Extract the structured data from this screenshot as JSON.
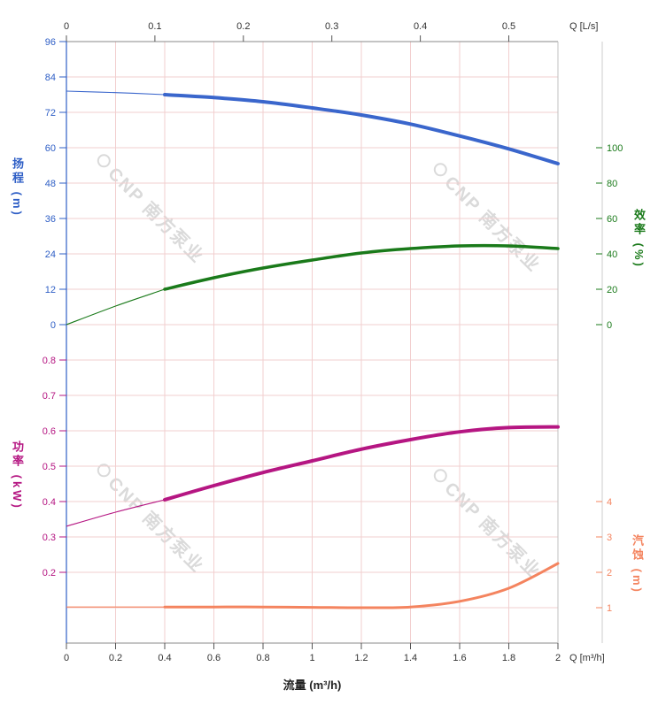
{
  "watermark": {
    "text": "CNP 南方泵业"
  },
  "axes": {
    "top_x": {
      "label": "Q [L/s]",
      "ticks": [
        0,
        0.1,
        0.2,
        0.3,
        0.4,
        0.5
      ]
    },
    "bottom_x": {
      "label": "Q [m³/h]",
      "title": "流量 (m³/h)",
      "ticks": [
        0,
        0.2,
        0.4,
        0.6,
        0.8,
        1,
        1.2,
        1.4,
        1.6,
        1.8,
        2
      ]
    },
    "head": {
      "title": "扬程 (m)",
      "color": "#2f5fc6",
      "ticks": [
        96,
        84,
        72,
        60,
        48,
        36,
        24,
        12,
        0
      ]
    },
    "eff": {
      "title": "效率 (%)",
      "color": "#1a7a1a",
      "ticks": [
        100,
        80,
        60,
        40,
        20,
        0
      ]
    },
    "power": {
      "title": "功率 (kW)",
      "color": "#b51682",
      "ticks": [
        0.8,
        0.7,
        0.6,
        0.5,
        0.4,
        0.3,
        0.2
      ]
    },
    "npsh": {
      "title": "汽蚀 (m)",
      "color": "#f4845f",
      "ticks": [
        4,
        3,
        2,
        1
      ]
    }
  },
  "chart_data": {
    "type": "line",
    "title": "",
    "x_axis": {
      "label": "流量 (m³/h)",
      "unit_top": "Q [L/s]",
      "unit_bottom": "Q [m³/h]",
      "range_m3h": [
        0,
        2
      ],
      "top_ticks_ls": [
        0,
        0.1,
        0.2,
        0.3,
        0.4,
        0.5
      ],
      "bottom_ticks_m3h": [
        0,
        0.2,
        0.4,
        0.6,
        0.8,
        1,
        1.2,
        1.4,
        1.6,
        1.8,
        2
      ]
    },
    "grid": true,
    "legend": "none",
    "rated_flow_split_m3h": 0.4,
    "x_m3h": [
      0,
      0.2,
      0.4,
      0.6,
      0.8,
      1,
      1.2,
      1.4,
      1.6,
      1.8,
      2
    ],
    "series": [
      {
        "name": "扬程",
        "unit": "m",
        "axis": "head",
        "color": "#3a66cc",
        "axis_ticks": [
          0,
          12,
          24,
          36,
          48,
          60,
          72,
          84,
          96
        ],
        "values": [
          79.2,
          78.7,
          78.0,
          77.0,
          75.6,
          73.5,
          71.1,
          68.0,
          64.0,
          59.6,
          54.6
        ]
      },
      {
        "name": "效率",
        "unit": "%",
        "axis": "eff",
        "color": "#1a7a1a",
        "axis_ticks": [
          0,
          20,
          40,
          60,
          80,
          100
        ],
        "values": [
          0,
          10.5,
          20.0,
          26.5,
          32.0,
          36.5,
          40.5,
          43.0,
          44.5,
          44.5,
          43.0
        ]
      },
      {
        "name": "功率",
        "unit": "kW",
        "axis": "power",
        "color": "#b51682",
        "axis_ticks": [
          0.2,
          0.3,
          0.4,
          0.5,
          0.6,
          0.7,
          0.8
        ],
        "values": [
          0.33,
          0.37,
          0.405,
          0.445,
          0.482,
          0.515,
          0.548,
          0.575,
          0.597,
          0.609,
          0.611
        ]
      },
      {
        "name": "汽蚀",
        "unit": "m",
        "axis": "npsh",
        "color": "#f4845f",
        "axis_ticks": [
          1,
          2,
          3,
          4
        ],
        "values": [
          1.02,
          1.02,
          1.02,
          1.02,
          1.02,
          1.01,
          1.0,
          1.02,
          1.18,
          1.55,
          2.25
        ]
      }
    ]
  }
}
